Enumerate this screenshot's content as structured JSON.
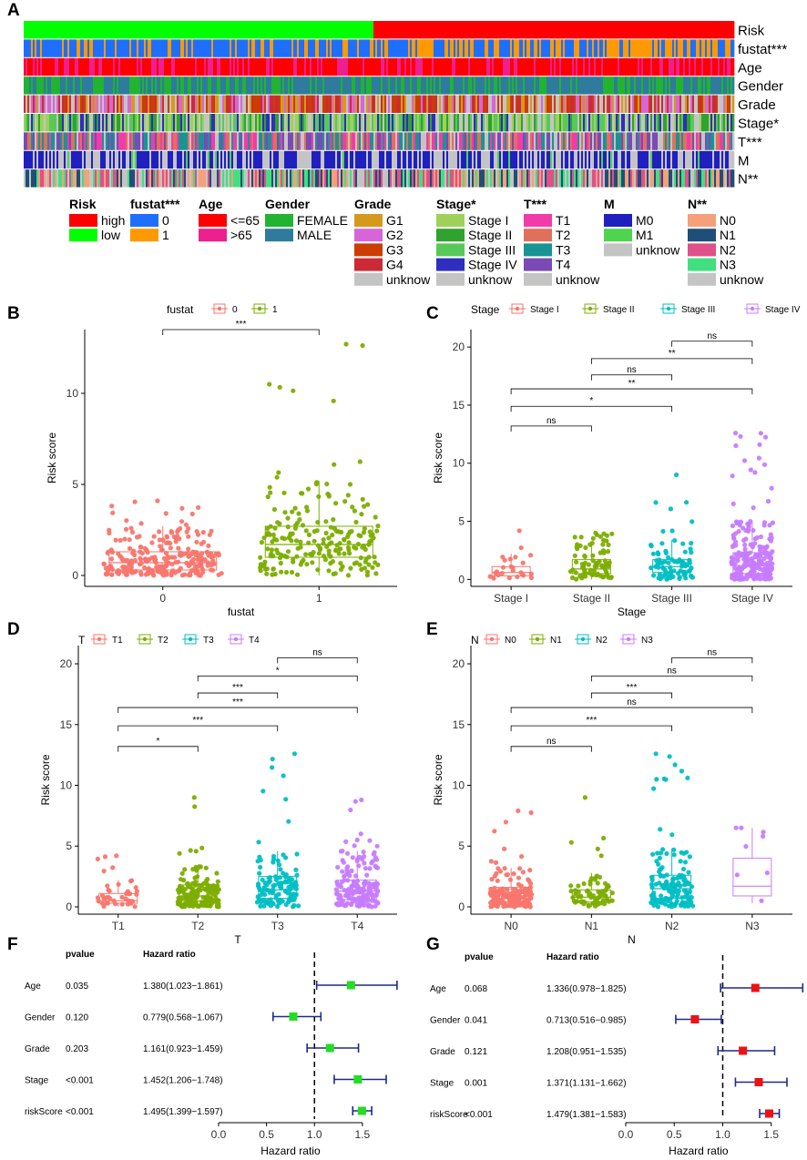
{
  "panel_letters": [
    "A",
    "B",
    "C",
    "D",
    "E",
    "F",
    "G"
  ],
  "colors": {
    "boxplot_groups": [
      "#F8766D",
      "#7CAE00",
      "#00BFC4",
      "#C77CFF"
    ],
    "forest_F_marker": "#22DD22",
    "forest_G_marker": "#EE1111",
    "forest_line": "#1B2A8A"
  },
  "heatmap": {
    "rows": [
      {
        "label": "Risk",
        "categories": [
          {
            "name": "high",
            "color": "#FF0000"
          },
          {
            "name": "low",
            "color": "#00FF00"
          }
        ]
      },
      {
        "label": "fustat***",
        "categories": [
          {
            "name": "0",
            "color": "#1E6FFF"
          },
          {
            "name": "1",
            "color": "#FF9900"
          }
        ]
      },
      {
        "label": "Age",
        "categories": [
          {
            "name": "<=65",
            "color": "#FF0000"
          },
          {
            "name": ">65",
            "color": "#EE1F8F"
          }
        ]
      },
      {
        "label": "Gender",
        "categories": [
          {
            "name": "FEMALE",
            "color": "#21B331"
          },
          {
            "name": "MALE",
            "color": "#2E7B9E"
          }
        ]
      },
      {
        "label": "Grade",
        "categories": [
          {
            "name": "G1",
            "color": "#D59A1C"
          },
          {
            "name": "G2",
            "color": "#D865D8"
          },
          {
            "name": "G3",
            "color": "#CC3D00"
          },
          {
            "name": "G4",
            "color": "#CC2A36"
          },
          {
            "name": "unknow",
            "color": "#C4C4C4"
          }
        ]
      },
      {
        "label": "Stage*",
        "categories": [
          {
            "name": "Stage I",
            "color": "#9FD15A"
          },
          {
            "name": "Stage II",
            "color": "#2FA230"
          },
          {
            "name": "Stage III",
            "color": "#59C85A"
          },
          {
            "name": "Stage IV",
            "color": "#2E2EBF"
          },
          {
            "name": "unknow",
            "color": "#C4C4C4"
          }
        ]
      },
      {
        "label": "T***",
        "categories": [
          {
            "name": "T1",
            "color": "#F23BAA"
          },
          {
            "name": "T2",
            "color": "#E0705A"
          },
          {
            "name": "T3",
            "color": "#189494"
          },
          {
            "name": "T4",
            "color": "#7A4AB5"
          },
          {
            "name": "unknow",
            "color": "#C4C4C4"
          }
        ]
      },
      {
        "label": "M",
        "categories": [
          {
            "name": "M0",
            "color": "#2020C0"
          },
          {
            "name": "M1",
            "color": "#4ED44E"
          },
          {
            "name": "unknow",
            "color": "#C4C4C4"
          }
        ]
      },
      {
        "label": "N**",
        "categories": [
          {
            "name": "N0",
            "color": "#F5A07A"
          },
          {
            "name": "N1",
            "color": "#1F4E79"
          },
          {
            "name": "N2",
            "color": "#E0508A"
          },
          {
            "name": "N3",
            "color": "#40E080"
          },
          {
            "name": "unknow",
            "color": "#C4C4C4"
          }
        ]
      }
    ],
    "legend_titles": [
      "Risk",
      "fustat***",
      "Age",
      "Gender",
      "Grade",
      "Stage*",
      "T***",
      "M",
      "N**"
    ]
  },
  "chart_data": [
    {
      "panel": "B",
      "type": "box",
      "legend_title": "fustat",
      "categories": [
        "0",
        "1"
      ],
      "xlabel": "fustat",
      "ylabel": "Risk score",
      "ylim": [
        -0.6,
        13.5
      ],
      "yticks": [
        0,
        5,
        10
      ],
      "boxes": [
        {
          "q1": 0.3,
          "median": 0.7,
          "q3": 1.3,
          "whisker_low": 0.0,
          "whisker_high": 2.7,
          "max": 4.1,
          "n": 260
        },
        {
          "q1": 1.0,
          "median": 1.7,
          "q3": 2.7,
          "whisker_low": 0.0,
          "whisker_high": 5.2,
          "max": 12.7,
          "n": 220
        }
      ],
      "comparisons": [
        {
          "from": 0,
          "to": 1,
          "label": "***",
          "y": 13.5
        }
      ]
    },
    {
      "panel": "C",
      "type": "box",
      "legend_title": "Stage",
      "categories": [
        "Stage I",
        "Stage II",
        "Stage III",
        "Stage IV"
      ],
      "xlabel": "Stage",
      "ylabel": "Risk score",
      "ylim": [
        -0.6,
        21.5
      ],
      "yticks": [
        0,
        5,
        10,
        15,
        20
      ],
      "boxes": [
        {
          "q1": 0.3,
          "median": 0.6,
          "q3": 1.1,
          "whisker_low": 0.0,
          "whisker_high": 2.2,
          "max": 4.2,
          "n": 25
        },
        {
          "q1": 0.5,
          "median": 0.9,
          "q3": 1.7,
          "whisker_low": 0.0,
          "whisker_high": 3.2,
          "max": 4.0,
          "n": 80
        },
        {
          "q1": 0.6,
          "median": 1.1,
          "q3": 1.7,
          "whisker_low": 0.0,
          "whisker_high": 3.4,
          "max": 9.0,
          "n": 85
        },
        {
          "q1": 0.5,
          "median": 1.2,
          "q3": 2.3,
          "whisker_low": 0.0,
          "whisker_high": 5.0,
          "max": 12.6,
          "n": 230
        }
      ],
      "comparisons": [
        {
          "from": 0,
          "to": 1,
          "label": "ns",
          "y": 13.2
        },
        {
          "from": 0,
          "to": 2,
          "label": "*",
          "y": 14.9
        },
        {
          "from": 0,
          "to": 3,
          "label": "**",
          "y": 16.4
        },
        {
          "from": 1,
          "to": 2,
          "label": "ns",
          "y": 17.6
        },
        {
          "from": 1,
          "to": 3,
          "label": "**",
          "y": 19.0
        },
        {
          "from": 2,
          "to": 3,
          "label": "ns",
          "y": 20.5
        }
      ]
    },
    {
      "panel": "D",
      "type": "box",
      "legend_title": "T",
      "categories": [
        "T1",
        "T2",
        "T3",
        "T4"
      ],
      "xlabel": "T",
      "ylabel": "Risk score",
      "ylim": [
        -0.6,
        21.5
      ],
      "yticks": [
        0,
        5,
        10,
        15,
        20
      ],
      "boxes": [
        {
          "q1": 0.3,
          "median": 0.5,
          "q3": 1.1,
          "whisker_low": 0.0,
          "whisker_high": 2.2,
          "max": 4.2,
          "n": 40
        },
        {
          "q1": 0.5,
          "median": 0.9,
          "q3": 1.8,
          "whisker_low": 0.0,
          "whisker_high": 3.3,
          "max": 9.0,
          "n": 150
        },
        {
          "q1": 0.7,
          "median": 1.4,
          "q3": 2.5,
          "whisker_low": 0.0,
          "whisker_high": 4.6,
          "max": 12.6,
          "n": 120
        },
        {
          "q1": 0.6,
          "median": 1.3,
          "q3": 2.2,
          "whisker_low": 0.0,
          "whisker_high": 4.6,
          "max": 8.8,
          "n": 180
        }
      ],
      "comparisons": [
        {
          "from": 0,
          "to": 1,
          "label": "*",
          "y": 13.2
        },
        {
          "from": 0,
          "to": 2,
          "label": "***",
          "y": 14.9
        },
        {
          "from": 0,
          "to": 3,
          "label": "***",
          "y": 16.4
        },
        {
          "from": 1,
          "to": 2,
          "label": "***",
          "y": 17.6
        },
        {
          "from": 1,
          "to": 3,
          "label": "*",
          "y": 19.0
        },
        {
          "from": 2,
          "to": 3,
          "label": "ns",
          "y": 20.5
        }
      ]
    },
    {
      "panel": "E",
      "type": "box",
      "legend_title": "N",
      "categories": [
        "N0",
        "N1",
        "N2",
        "N3"
      ],
      "xlabel": "N",
      "ylabel": "Risk score",
      "ylim": [
        -0.6,
        21.5
      ],
      "yticks": [
        0,
        5,
        10,
        15,
        20
      ],
      "boxes": [
        {
          "q1": 0.4,
          "median": 0.9,
          "q3": 1.6,
          "whisker_low": 0.0,
          "whisker_high": 3.2,
          "max": 7.9,
          "n": 170
        },
        {
          "q1": 0.4,
          "median": 0.8,
          "q3": 1.4,
          "whisker_low": 0.0,
          "whisker_high": 2.8,
          "max": 9.0,
          "n": 70
        },
        {
          "q1": 0.7,
          "median": 1.5,
          "q3": 2.6,
          "whisker_low": 0.0,
          "whisker_high": 4.8,
          "max": 12.6,
          "n": 150
        },
        {
          "q1": 0.9,
          "median": 1.7,
          "q3": 4.0,
          "whisker_low": 0.3,
          "whisker_high": 6.5,
          "max": 6.5,
          "n": 8
        }
      ],
      "comparisons": [
        {
          "from": 0,
          "to": 1,
          "label": "ns",
          "y": 13.2
        },
        {
          "from": 0,
          "to": 2,
          "label": "***",
          "y": 14.9
        },
        {
          "from": 0,
          "to": 3,
          "label": "ns",
          "y": 16.4
        },
        {
          "from": 1,
          "to": 2,
          "label": "***",
          "y": 17.6
        },
        {
          "from": 1,
          "to": 3,
          "label": "ns",
          "y": 19.0
        },
        {
          "from": 2,
          "to": 3,
          "label": "ns",
          "y": 20.5
        }
      ]
    },
    {
      "panel": "F",
      "type": "forest",
      "col_pvalue": "pvalue",
      "col_hr": "Hazard ratio",
      "xlabel": "Hazard ratio",
      "xlim": [
        0.0,
        1.9
      ],
      "xticks": [
        "0.0",
        "0.5",
        "1.0",
        "1.5"
      ],
      "ref_line": 1.0,
      "rows": [
        {
          "name": "Age",
          "pvalue": "0.035",
          "hr_text": "1.380(1.023−1.861)",
          "hr": 1.38,
          "lo": 1.023,
          "hi": 1.861
        },
        {
          "name": "Gender",
          "pvalue": "0.120",
          "hr_text": "0.779(0.568−1.067)",
          "hr": 0.779,
          "lo": 0.568,
          "hi": 1.067
        },
        {
          "name": "Grade",
          "pvalue": "0.203",
          "hr_text": "1.161(0.923−1.459)",
          "hr": 1.161,
          "lo": 0.923,
          "hi": 1.459
        },
        {
          "name": "Stage",
          "pvalue": "<0.001",
          "hr_text": "1.452(1.206−1.748)",
          "hr": 1.452,
          "lo": 1.206,
          "hi": 1.748
        },
        {
          "name": "riskScore",
          "pvalue": "<0.001",
          "hr_text": "1.495(1.399−1.597)",
          "hr": 1.495,
          "lo": 1.399,
          "hi": 1.597
        }
      ]
    },
    {
      "panel": "G",
      "type": "forest",
      "col_pvalue": "pvalue",
      "col_hr": "Hazard ratio",
      "xlabel": "Hazard ratio",
      "xlim": [
        0.0,
        1.85
      ],
      "xticks": [
        "0.0",
        "0.5",
        "1.0",
        "1.5"
      ],
      "ref_line": 1.0,
      "rows": [
        {
          "name": "Age",
          "pvalue": "0.068",
          "hr_text": "1.336(0.978−1.825)",
          "hr": 1.336,
          "lo": 0.978,
          "hi": 1.825
        },
        {
          "name": "Gender",
          "pvalue": "0.041",
          "hr_text": "0.713(0.516−0.985)",
          "hr": 0.713,
          "lo": 0.516,
          "hi": 0.985
        },
        {
          "name": "Grade",
          "pvalue": "0.121",
          "hr_text": "1.208(0.951−1.535)",
          "hr": 1.208,
          "lo": 0.951,
          "hi": 1.535
        },
        {
          "name": "Stage",
          "pvalue": "0.001",
          "hr_text": "1.371(1.131−1.662)",
          "hr": 1.371,
          "lo": 1.131,
          "hi": 1.662
        },
        {
          "name": "riskScore",
          "pvalue": "<0.001",
          "hr_text": "1.479(1.381−1.583)",
          "hr": 1.479,
          "lo": 1.381,
          "hi": 1.583
        }
      ]
    }
  ]
}
